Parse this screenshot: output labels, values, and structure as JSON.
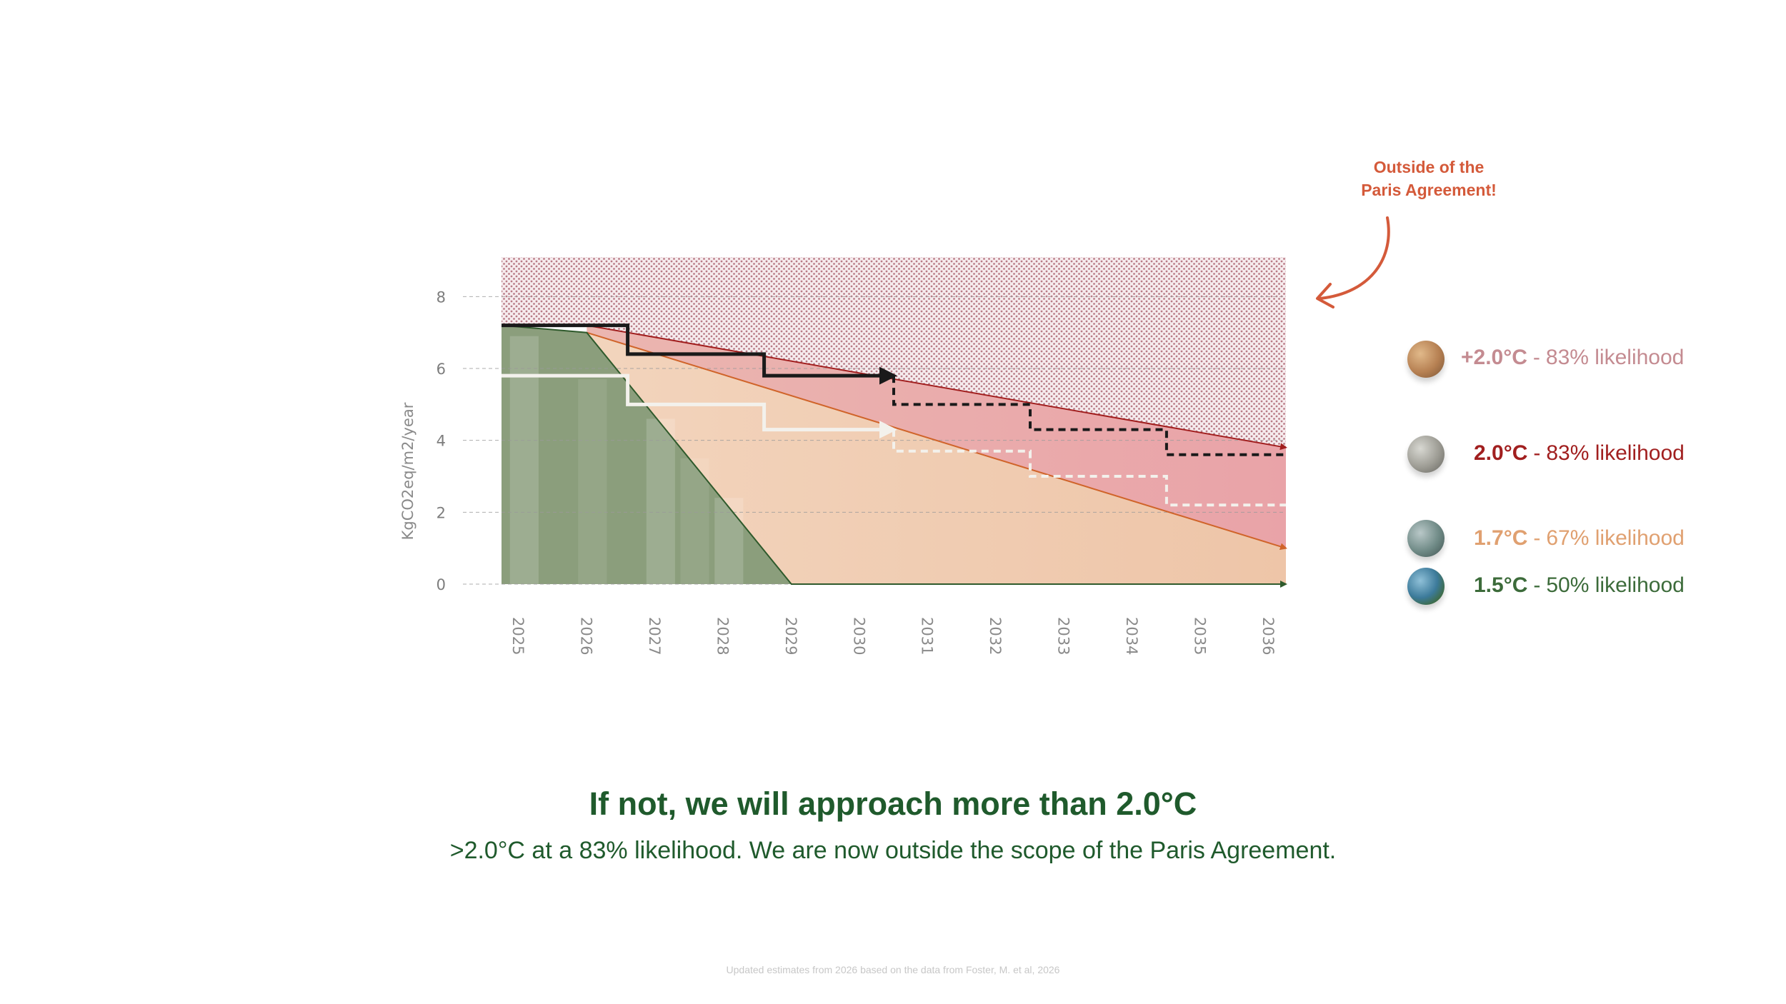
{
  "chart_data": {
    "type": "area",
    "ylabel": "KgCO2eq/m2/year",
    "yticks": [
      0,
      2,
      4,
      6,
      8
    ],
    "ylim": [
      0,
      9.1
    ],
    "x": [
      "2025",
      "2026",
      "2027",
      "2028",
      "2029",
      "2030",
      "2031",
      "2032",
      "2033",
      "2034",
      "2035",
      "2036"
    ],
    "xlim": [
      2025,
      2036.25
    ],
    "grid": true,
    "areas": [
      {
        "key": "above-2.0",
        "fill": "dotted",
        "color": "#c78791",
        "points": [
          [
            2024.75,
            9.1
          ],
          [
            2036.25,
            9.1
          ],
          [
            2036.25,
            3.8
          ],
          [
            2026,
            7.2
          ],
          [
            2024.75,
            7.2
          ]
        ]
      },
      {
        "key": "2.0",
        "color": "#e8a8a8",
        "points": [
          [
            2026,
            7.2
          ],
          [
            2036.25,
            3.8
          ],
          [
            2036.25,
            1.0
          ],
          [
            2026,
            7.0
          ]
        ]
      },
      {
        "key": "1.7",
        "color": "#efc8a8",
        "points": [
          [
            2024.75,
            7.2
          ],
          [
            2026,
            7.0
          ],
          [
            2036.25,
            1.0
          ],
          [
            2036.25,
            0
          ],
          [
            2024.75,
            0
          ]
        ]
      },
      {
        "key": "1.5",
        "color": "#8b9e7c",
        "points": [
          [
            2024.75,
            0
          ],
          [
            2024.75,
            7.2
          ],
          [
            2026,
            7.0
          ],
          [
            2029,
            0
          ]
        ]
      }
    ],
    "boundary_lines": [
      {
        "key": "2.0-limit",
        "color": "#a11f1f",
        "points": [
          [
            2026,
            7.2
          ],
          [
            2036.25,
            3.8
          ]
        ]
      },
      {
        "key": "1.7-limit",
        "color": "#d0642a",
        "points": [
          [
            2026,
            7.0
          ],
          [
            2036.25,
            1.0
          ]
        ]
      },
      {
        "key": "1.5-limit",
        "color": "#2f5a2c",
        "points": [
          [
            2024.75,
            7.2
          ],
          [
            2026,
            7.0
          ],
          [
            2029,
            0
          ],
          [
            2036.25,
            0
          ]
        ]
      }
    ],
    "steps": [
      {
        "key": "actual-black",
        "color": "#1a1a1a",
        "dashed": false,
        "points": [
          [
            2024.75,
            7.2
          ],
          [
            2026.6,
            7.2
          ],
          [
            2026.6,
            6.4
          ],
          [
            2028.6,
            6.4
          ],
          [
            2028.6,
            5.8
          ],
          [
            2030.5,
            5.8
          ]
        ]
      },
      {
        "key": "projected-black",
        "color": "#1a1a1a",
        "dashed": true,
        "points": [
          [
            2030.5,
            5.8
          ],
          [
            2030.5,
            5.0
          ],
          [
            2032.5,
            5.0
          ],
          [
            2032.5,
            4.3
          ],
          [
            2034.5,
            4.3
          ],
          [
            2034.5,
            3.6
          ],
          [
            2036.25,
            3.6
          ]
        ]
      },
      {
        "key": "actual-white",
        "color": "#f3f1ec",
        "dashed": false,
        "points": [
          [
            2024.75,
            5.8
          ],
          [
            2026.6,
            5.8
          ],
          [
            2026.6,
            5.0
          ],
          [
            2028.6,
            5.0
          ],
          [
            2028.6,
            4.3
          ],
          [
            2030.5,
            4.3
          ]
        ]
      },
      {
        "key": "projected-white",
        "color": "#f3f1ec",
        "dashed": true,
        "points": [
          [
            2030.5,
            4.3
          ],
          [
            2030.5,
            3.7
          ],
          [
            2032.5,
            3.7
          ],
          [
            2032.5,
            3.0
          ],
          [
            2034.5,
            3.0
          ],
          [
            2034.5,
            2.2
          ],
          [
            2036.25,
            2.2
          ]
        ]
      }
    ],
    "bars": [
      {
        "x": 2025,
        "value": 6.9
      },
      {
        "x": 2026,
        "value": 5.7
      },
      {
        "x": 2027,
        "value": 4.6
      },
      {
        "x": 2027.5,
        "value": 3.5
      },
      {
        "x": 2028,
        "value": 2.4
      }
    ],
    "legend": [
      {
        "temp": "+2.0°C",
        "sep": "-",
        "likelihood": "83% likelihood",
        "color": "#c48b91",
        "globe": "mars-like"
      },
      {
        "temp": "2.0°C",
        "sep": "-",
        "likelihood": "83% likelihood",
        "color": "#a11f1f",
        "globe": "moon-like"
      },
      {
        "temp": "1.7°C",
        "sep": "-",
        "likelihood": "67% likelihood",
        "color": "#e0a070",
        "globe": "earth-dry"
      },
      {
        "temp": "1.5°C",
        "sep": "-",
        "likelihood": "50% likelihood",
        "color": "#3c6b3a",
        "globe": "earth-blue"
      }
    ]
  },
  "annotation": {
    "line1": "Outside of the",
    "line2": "Paris Agreement!"
  },
  "headline": "If not, we will approach more than 2.0°C",
  "subline": ">2.0°C at a 83% likelihood. We are now outside the scope of the Paris Agreement.",
  "footnote": "Updated estimates from 2026 based on the data from Foster, M. et al, 2026"
}
